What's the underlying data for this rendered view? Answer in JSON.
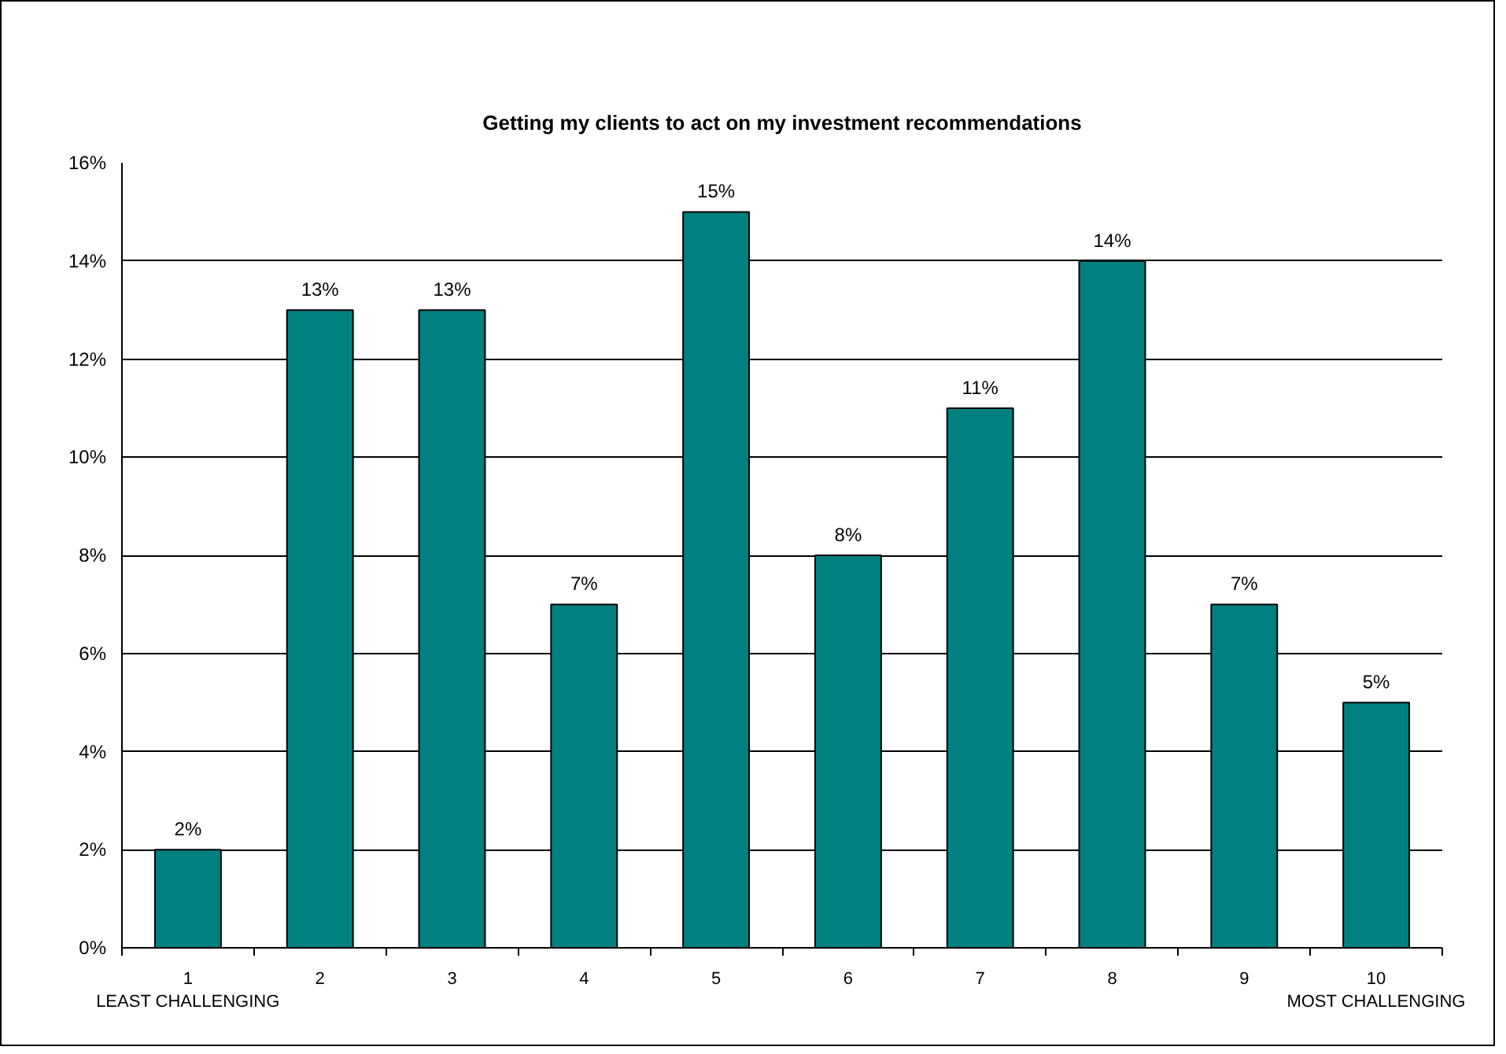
{
  "chart_data": {
    "type": "bar",
    "title": "Getting my clients to act on my investment recommendations",
    "categories": [
      "1\nLEAST CHALLENGING",
      "2",
      "3",
      "4",
      "5",
      "6",
      "7",
      "8",
      "9",
      "10\nMOST CHALLENGING"
    ],
    "values": [
      2,
      13,
      13,
      7,
      15,
      8,
      11,
      14,
      7,
      5
    ],
    "value_labels": [
      "2%",
      "13%",
      "13%",
      "7%",
      "15%",
      "8%",
      "11%",
      "14%",
      "7%",
      "5%"
    ],
    "color": "#008080",
    "ylim": [
      0,
      16
    ],
    "yticks": [
      {
        "value": 0,
        "label": "0%"
      },
      {
        "value": 2,
        "label": "2%"
      },
      {
        "value": 4,
        "label": "4%"
      },
      {
        "value": 6,
        "label": "6%"
      },
      {
        "value": 8,
        "label": "8%"
      },
      {
        "value": 10,
        "label": "10%"
      },
      {
        "value": 12,
        "label": "12%"
      },
      {
        "value": 14,
        "label": "14%"
      },
      {
        "value": 16,
        "label": "16%"
      }
    ],
    "grid": "y"
  }
}
